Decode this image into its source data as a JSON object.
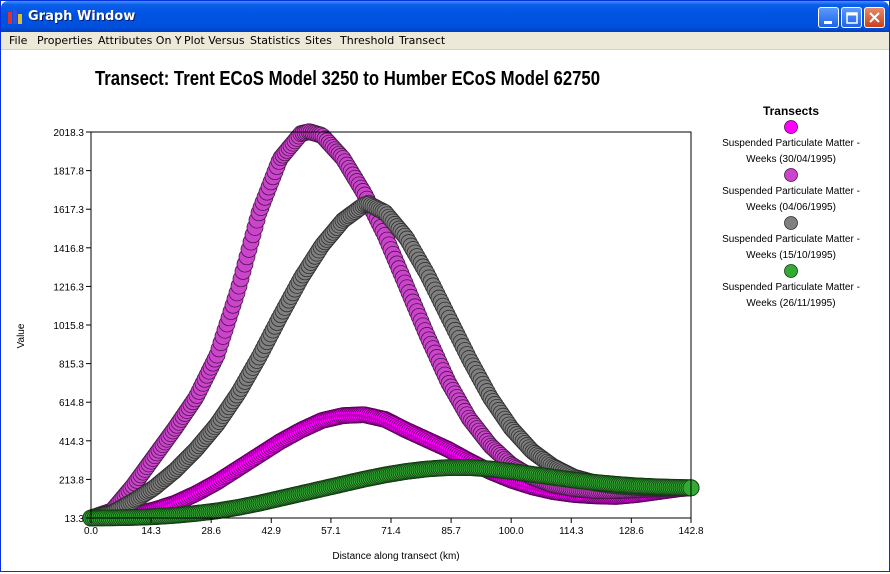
{
  "window": {
    "title": "Graph Window",
    "controls": {
      "minimize_icon": "minimize-icon",
      "maximize_icon": "maximize-icon",
      "close_icon": "close-icon"
    }
  },
  "menubar": {
    "items": [
      "File",
      "Properties",
      "Attributes On Y",
      "Plot Versus",
      "Statistics",
      "Sites",
      "Threshold",
      "Transect"
    ]
  },
  "chart_data": {
    "type": "scatter",
    "title": "Transect: Trent ECoS Model 3250 to Humber ECoS Model 62750",
    "xlabel": "Distance along transect (km)",
    "ylabel": "Value",
    "xlim": [
      0.0,
      142.8
    ],
    "ylim": [
      13.3,
      2018.3
    ],
    "x_ticks": [
      "0.0",
      "14.3",
      "28.6",
      "42.9",
      "57.1",
      "71.4",
      "85.7",
      "100.0",
      "114.3",
      "128.6",
      "142.8"
    ],
    "y_ticks": [
      "13.3",
      "213.8",
      "414.3",
      "614.8",
      "815.3",
      "1015.8",
      "1216.3",
      "1416.8",
      "1617.3",
      "1817.8",
      "2018.3"
    ],
    "grid": false,
    "legend": {
      "title": "Transects",
      "placement": "right"
    },
    "series": [
      {
        "name": "Suspended Particulate Matter - Weeks (30/04/1995)",
        "color": "#ff00ff",
        "x": [
          0,
          5,
          10,
          15,
          20,
          25,
          30,
          35,
          40,
          45,
          50,
          55,
          60,
          65,
          70,
          75,
          80,
          85,
          90,
          95,
          100,
          105,
          110,
          115,
          120,
          125,
          130,
          135,
          140,
          142.8
        ],
        "y": [
          13.3,
          18,
          30,
          55,
          90,
          140,
          200,
          270,
          340,
          410,
          470,
          520,
          545,
          550,
          525,
          470,
          420,
          370,
          310,
          255,
          210,
          175,
          150,
          135,
          128,
          125,
          135,
          150,
          165,
          170
        ]
      },
      {
        "name": "Suspended Particulate Matter - Weeks (04/06/1995)",
        "color": "#cc44cc",
        "x": [
          0,
          5,
          10,
          15,
          20,
          25,
          30,
          35,
          40,
          45,
          50,
          52,
          55,
          60,
          65,
          70,
          75,
          80,
          85,
          90,
          95,
          100,
          105,
          110,
          115,
          120,
          125,
          130,
          135,
          140,
          142.8
        ],
        "y": [
          13.3,
          50,
          180,
          330,
          480,
          640,
          860,
          1200,
          1600,
          1880,
          2010,
          2020,
          2000,
          1880,
          1700,
          1480,
          1220,
          960,
          720,
          530,
          390,
          290,
          225,
          185,
          165,
          155,
          155,
          160,
          165,
          170,
          170
        ]
      },
      {
        "name": "Suspended Particulate Matter - Weeks (15/10/1995)",
        "color": "#808080",
        "x": [
          0,
          5,
          10,
          15,
          20,
          25,
          30,
          35,
          40,
          45,
          50,
          55,
          60,
          65,
          66,
          70,
          75,
          80,
          85,
          90,
          95,
          100,
          105,
          110,
          115,
          120,
          125,
          130,
          135,
          140,
          142.8
        ],
        "y": [
          13.3,
          40,
          100,
          170,
          260,
          370,
          500,
          660,
          850,
          1060,
          1260,
          1430,
          1560,
          1640,
          1645,
          1600,
          1470,
          1280,
          1060,
          840,
          640,
          480,
          360,
          280,
          225,
          195,
          180,
          172,
          170,
          170,
          170
        ]
      },
      {
        "name": "Suspended Particulate Matter - Weeks (26/11/1995)",
        "color": "#33aa33",
        "x": [
          0,
          5,
          10,
          15,
          20,
          25,
          30,
          35,
          40,
          45,
          50,
          55,
          60,
          65,
          70,
          75,
          80,
          85,
          90,
          95,
          100,
          105,
          110,
          115,
          120,
          125,
          130,
          135,
          140,
          142.8
        ],
        "y": [
          13.3,
          14,
          16,
          20,
          27,
          37,
          50,
          68,
          90,
          115,
          140,
          165,
          190,
          215,
          237,
          255,
          268,
          275,
          275,
          268,
          255,
          240,
          225,
          210,
          198,
          188,
          180,
          175,
          172,
          170
        ]
      }
    ]
  }
}
